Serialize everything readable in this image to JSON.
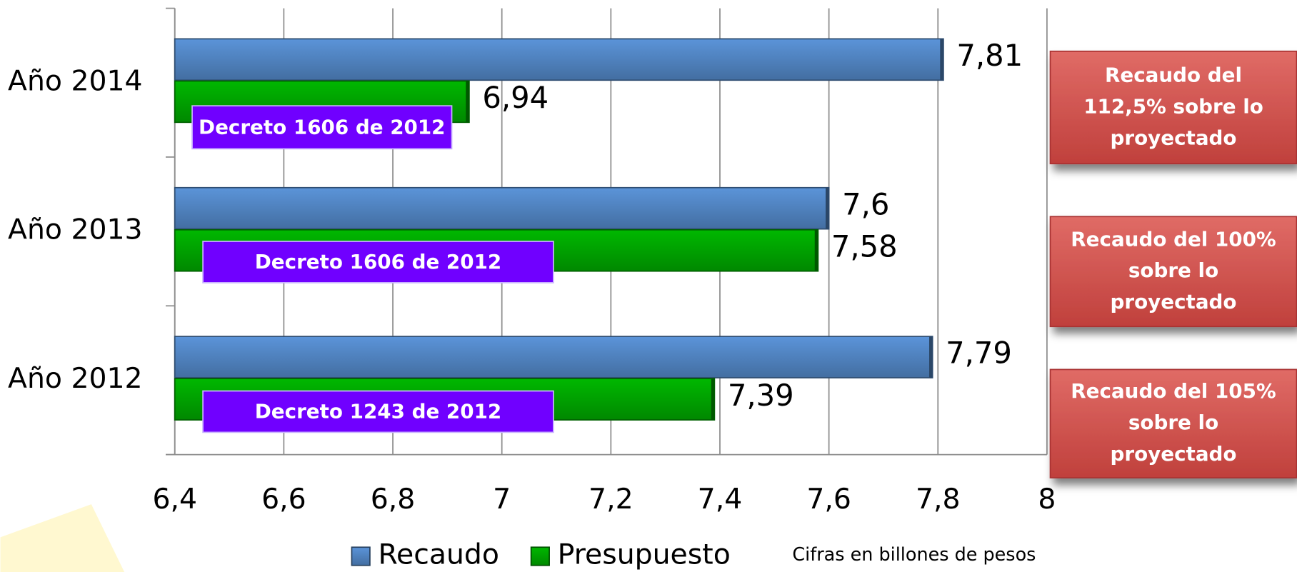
{
  "chart_data": {
    "type": "hbar",
    "categories": [
      "Año 2014",
      "Año 2013",
      "Año 2012"
    ],
    "series": [
      {
        "name": "Recaudo",
        "color": "#4f81bd",
        "values": [
          7.81,
          7.6,
          7.79
        ],
        "value_labels": [
          "7,81",
          "7,6",
          "7,79"
        ]
      },
      {
        "name": "Presupuesto",
        "color": "#00a000",
        "values": [
          6.94,
          7.58,
          7.39
        ],
        "value_labels": [
          "6,94",
          "7,58",
          "7,39"
        ]
      }
    ],
    "xlim": [
      6.4,
      8
    ],
    "xticks": [
      {
        "value": 6.4,
        "label": "6,4"
      },
      {
        "value": 6.6,
        "label": "6,6"
      },
      {
        "value": 6.8,
        "label": "6,8"
      },
      7,
      {
        "value": 7.2,
        "label": "7,2"
      },
      {
        "value": 7.4,
        "label": "7,4"
      },
      {
        "value": 7.6,
        "label": "7,6"
      },
      {
        "value": 7.8,
        "label": "7,8"
      },
      8
    ],
    "grid": true,
    "legend": "bottom",
    "decrees": [
      "Decreto 1606 de 2012",
      "Decreto 1606 de 2012",
      "Decreto 1243 de 2012"
    ],
    "callouts": [
      [
        "Recaudo del",
        "112,5% sobre lo",
        "proyectado"
      ],
      [
        "Recaudo del 100%",
        "sobre lo",
        "proyectado"
      ],
      [
        "Recaudo del 105%",
        "sobre lo",
        "proyectado"
      ]
    ],
    "note": "Cifras en billones de pesos"
  }
}
